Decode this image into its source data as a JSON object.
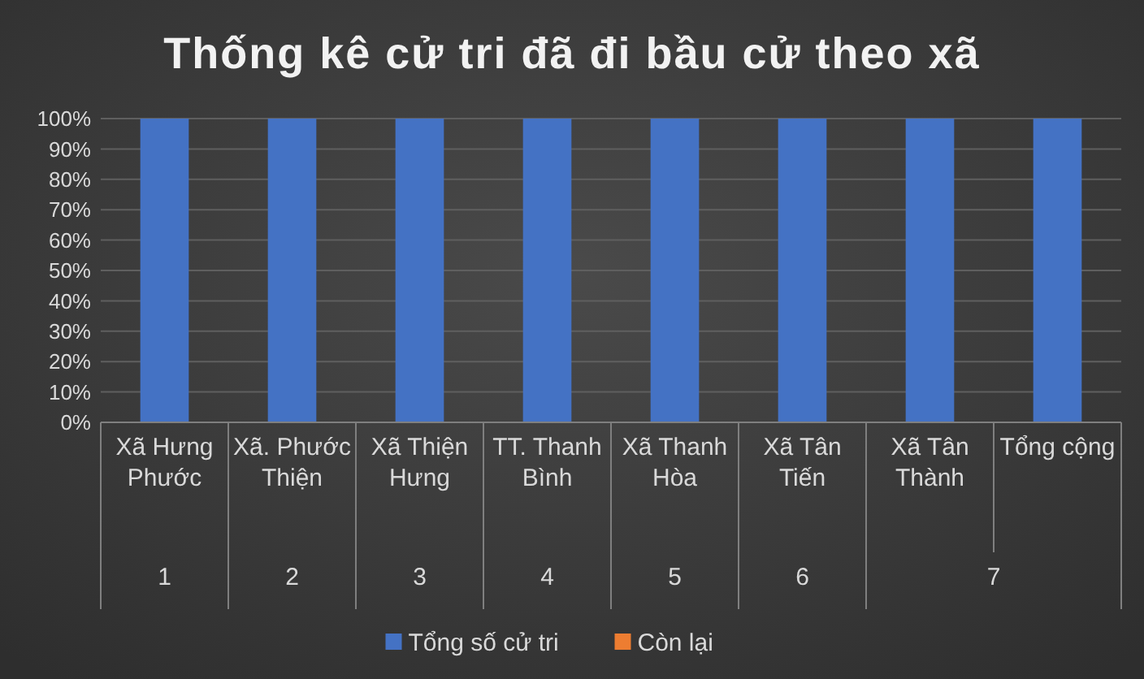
{
  "chart_data": {
    "type": "bar",
    "title": "Thống kê cử tri đã đi bầu cử theo xã",
    "stacked": true,
    "categories": [
      "Xã Hưng Phước",
      "Xã. Phước Thiện",
      "Xã Thiện Hưng",
      "TT. Thanh Bình",
      "Xã Thanh Hòa",
      "Xã Tân Tiến",
      "Xã Tân Thành",
      "Tổng cộng"
    ],
    "series": [
      {
        "name": "Tổng số cử tri",
        "color": "#4472c4",
        "values": [
          100,
          100,
          100,
          100,
          100,
          100,
          100,
          100
        ]
      },
      {
        "name": "Còn lại",
        "color": "#ed7d31",
        "values": [
          0,
          0,
          0,
          0,
          0,
          0,
          0,
          0
        ]
      }
    ],
    "ylim": [
      0,
      100
    ],
    "yticks": [
      {
        "value": 0,
        "label": "0%"
      },
      {
        "value": 10,
        "label": "10%"
      },
      {
        "value": 20,
        "label": "20%"
      },
      {
        "value": 30,
        "label": "30%"
      },
      {
        "value": 40,
        "label": "40%"
      },
      {
        "value": 50,
        "label": "50%"
      },
      {
        "value": 60,
        "label": "60%"
      },
      {
        "value": 70,
        "label": "70%"
      },
      {
        "value": 80,
        "label": "80%"
      },
      {
        "value": 90,
        "label": "90%"
      },
      {
        "value": 100,
        "label": "100%"
      }
    ],
    "annotations": [
      "1",
      "2",
      "3",
      "4",
      "5",
      "6",
      "7"
    ],
    "grid": "y",
    "legend": "bottom"
  }
}
